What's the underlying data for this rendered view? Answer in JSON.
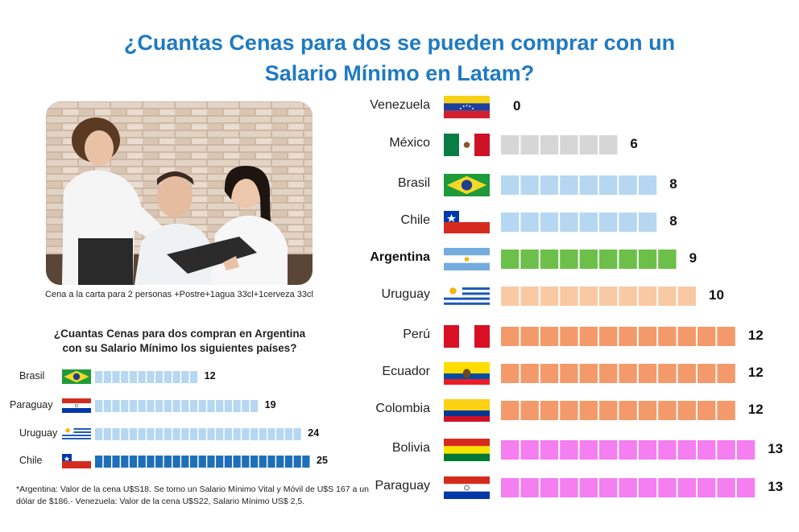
{
  "title_line1": "¿Cuantas Cenas para dos se pueden comprar con un",
  "title_line2": "Salario Mínimo en Latam?",
  "photo_caption": "Cena a la carta para 2 personas +Postre+1agua 33cl+1cerveza 33cl",
  "sub_title_line1": "¿Cuantas Cenas para dos compran en Argentina",
  "sub_title_line2": "con su Salario Mínimo los siguientes países?",
  "footnote_line1": "*Argentina: Valor de la cena U$S18. Se tomo un Salario Mínimo Vital y Móvil de U$S 167 a un",
  "footnote_line2": "dólar de $186.- Venezuela:  Valor de la cena U$S22, Salario Mínimo US$ 2,5.",
  "colors": {
    "title": "#1f7ac2",
    "gray": "#d6d6d6",
    "light_blue": "#b6d7f2",
    "green": "#6cc04a",
    "peach": "#f9c9a4",
    "orange": "#f49a6a",
    "pink": "#f57ef0",
    "dark_blue": "#1f6fb8"
  },
  "chart_data": [
    {
      "type": "bar",
      "orientation": "horizontal",
      "title": "¿Cuantas Cenas para dos se pueden comprar con un Salario Mínimo en Latam?",
      "categories": [
        "Venezuela",
        "México",
        "Brasil",
        "Chile",
        "Argentina",
        "Uruguay",
        "Perú",
        "Ecuador",
        "Colombia",
        "Bolivia",
        "Paraguay"
      ],
      "values": [
        0,
        6,
        8,
        8,
        9,
        10,
        12,
        12,
        12,
        13,
        13
      ],
      "bar_colors": [
        "gray",
        "gray",
        "light_blue",
        "light_blue",
        "green",
        "peach",
        "orange",
        "orange",
        "orange",
        "pink",
        "pink"
      ],
      "flags": [
        "venezuela-flag",
        "mexico-flag",
        "brasil-flag",
        "chile-flag",
        "argentina-flag",
        "uruguay-flag",
        "peru-flag",
        "ecuador-flag",
        "colombia-flag",
        "bolivia-flag",
        "paraguay-flag"
      ],
      "highlight": "Argentina",
      "xlim": [
        0,
        13
      ]
    },
    {
      "type": "bar",
      "orientation": "horizontal",
      "title": "¿Cuantas Cenas para dos compran en Argentina con su Salario Mínimo los siguientes países?",
      "categories": [
        "Brasil",
        "Paraguay",
        "Uruguay",
        "Chile"
      ],
      "values": [
        12,
        19,
        24,
        25
      ],
      "bar_colors": [
        "light_blue",
        "light_blue",
        "light_blue",
        "dark_blue"
      ],
      "flags": [
        "brasil-flag",
        "paraguay-flag",
        "uruguay-flag",
        "chile-flag"
      ],
      "xlim": [
        0,
        25
      ]
    }
  ]
}
